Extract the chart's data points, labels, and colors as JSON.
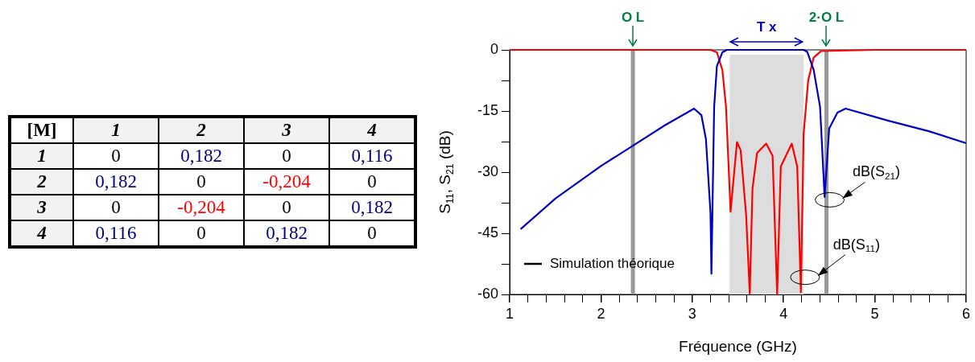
{
  "chart_data": [
    {
      "type": "heatmap",
      "title": "[M]",
      "categories": [
        "1",
        "2",
        "3",
        "4"
      ],
      "y_categories": [
        "1",
        "2",
        "3",
        "4"
      ],
      "cells": [
        [
          0,
          0.182,
          0,
          0.116
        ],
        [
          0.182,
          0,
          -0.204,
          0
        ],
        [
          0,
          -0.204,
          0,
          0.182
        ],
        [
          0.116,
          0,
          0.182,
          0
        ]
      ],
      "cell_labels": [
        [
          "0",
          "0,182",
          "0",
          "0,116"
        ],
        [
          "0,182",
          "0",
          "-0,204",
          "0"
        ],
        [
          "0",
          "-0,204",
          "0",
          "0,182"
        ],
        [
          "0,116",
          "0",
          "0,182",
          "0"
        ]
      ]
    },
    {
      "type": "line",
      "xlabel": "Fréquence (GHz)",
      "ylabel": "S$_{11}$, S$_{21}$ (dB)",
      "xlim": [
        1,
        6
      ],
      "ylim": [
        -60,
        0
      ],
      "xticks": [
        1,
        {
          "value": 1.2,
          "label": null
        },
        {
          "value": 1.4,
          "label": null
        },
        {
          "value": 1.6,
          "label": null
        },
        {
          "value": 1.8,
          "label": null
        },
        2,
        {
          "value": 2.2,
          "label": null
        },
        {
          "value": 2.4,
          "label": null
        },
        {
          "value": 2.6,
          "label": null
        },
        {
          "value": 2.8,
          "label": null
        },
        3,
        {
          "value": 3.2,
          "label": null
        },
        {
          "value": 3.4,
          "label": null
        },
        {
          "value": 3.6,
          "label": null
        },
        {
          "value": 3.8,
          "label": null
        },
        4,
        {
          "value": 4.2,
          "label": null
        },
        {
          "value": 4.4,
          "label": null
        },
        {
          "value": 4.6,
          "label": null
        },
        {
          "value": 4.8,
          "label": null
        },
        5,
        {
          "value": 5.2,
          "label": null
        },
        {
          "value": 5.4,
          "label": null
        },
        {
          "value": 5.6,
          "label": null
        },
        {
          "value": 5.8,
          "label": null
        },
        6
      ],
      "yticks": [
        -60,
        {
          "value": -52.5,
          "label": null
        },
        -45,
        {
          "value": -37.5,
          "label": null
        },
        -30,
        {
          "value": -22.5,
          "label": null
        },
        -15,
        {
          "value": -7.5,
          "label": null
        },
        0
      ],
      "series": [
        {
          "color": "#0000c0",
          "x": [
            1.12,
            1.5,
            2.0,
            2.35,
            2.7,
            3.02,
            3.1,
            3.15,
            3.2,
            3.21,
            3.24,
            3.27,
            3.33,
            3.38,
            3.8,
            4.22,
            4.26,
            4.33,
            4.4,
            4.45,
            4.5,
            4.59,
            4.68,
            5.15,
            5.6,
            6.0
          ],
          "values": [
            -44,
            -36.5,
            -28.5,
            -23.5,
            -18.5,
            -14.4,
            -16,
            -21.9,
            -40,
            -54.9,
            -14,
            -4,
            -0.6,
            0,
            0,
            0,
            -0.5,
            -4.9,
            -14,
            -36.1,
            -19.3,
            -15.4,
            -14.4,
            -17.4,
            -20,
            -22.9
          ]
        },
        {
          "color": "#ff0000",
          "x": [
            1.0,
            2.5,
            2.8,
            3.1,
            3.2,
            3.27,
            3.33,
            3.37,
            3.42,
            3.49,
            3.53,
            3.59,
            3.63,
            3.66,
            3.71,
            3.81,
            3.88,
            3.93,
            3.97,
            4.09,
            4.15,
            4.19,
            4.22,
            4.27,
            4.33,
            4.41,
            5.0,
            6.0
          ],
          "values": [
            0,
            0,
            0,
            0,
            0,
            -0.6,
            -4.9,
            -14,
            -39.7,
            -22.6,
            -24.6,
            -40.4,
            -59.8,
            -34,
            -25.3,
            -23,
            -26,
            -60,
            -28.6,
            -23,
            -28.6,
            -59.5,
            -20.6,
            -7.5,
            -1.9,
            -0.3,
            0,
            0
          ]
        }
      ],
      "ref_lines": [
        {
          "axis": "x",
          "value": 2.35,
          "label": "O L",
          "color": "#999999"
        },
        {
          "axis": "x",
          "value": 4.47,
          "label": "2·O L",
          "color": "#999999"
        }
      ],
      "bands": [
        {
          "axis": "x",
          "from": 3.41,
          "to": 4.22,
          "label": "T x",
          "color": "#dddddd"
        }
      ],
      "annotations": [
        {
          "text": "dB(S$_{21}$)",
          "x": 4.47,
          "y": -36
        },
        {
          "text": "dB(S$_{11}$)",
          "x": 4.2,
          "y": -55
        },
        "Simulation théorique"
      ],
      "grid": false,
      "legend": false
    }
  ]
}
